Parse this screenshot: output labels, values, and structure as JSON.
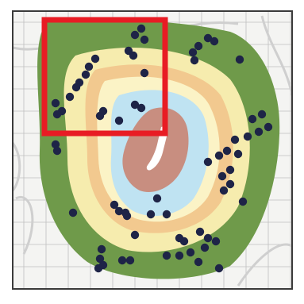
{
  "map": {
    "colors": {
      "background": "#f4f4f2",
      "grid_line": "#bfbfbf",
      "road": "#cfcfcf",
      "frame": "#3a3a3a",
      "outer_ring": "#6f9a4a",
      "ring_yellow": "#f6ecae",
      "ring_orange": "#f2c98f",
      "ring_light_yellow": "#fbf3c6",
      "ring_blue": "#bfe3f2",
      "core": "#c88e80",
      "core_cut": "#ffffff",
      "points": "#1e2447",
      "highlight": "#e81c24"
    },
    "icons": {
      "point": "filled-circle",
      "highlight": "red-square-outline"
    }
  }
}
